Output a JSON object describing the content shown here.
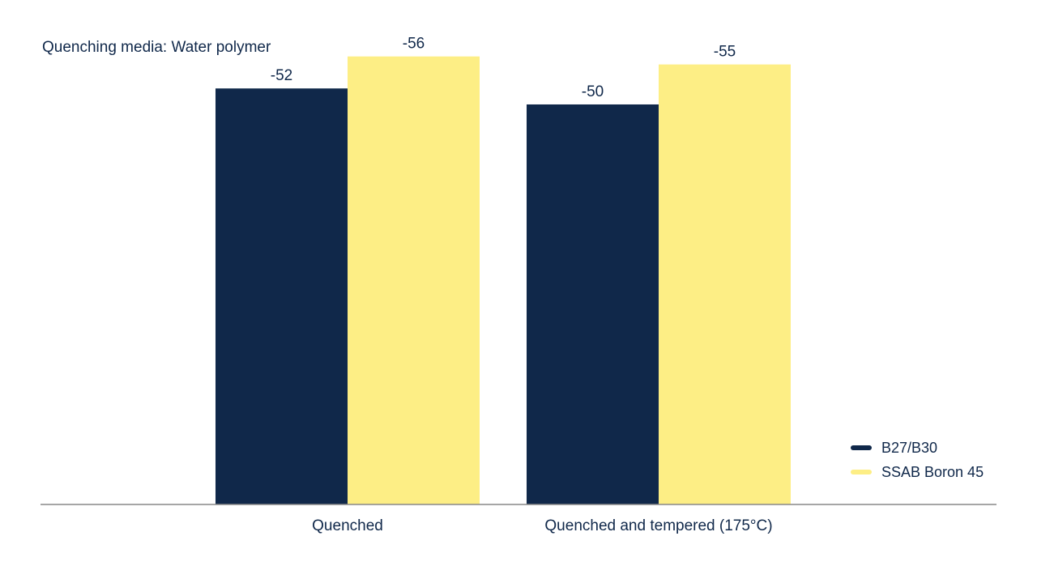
{
  "chart_data": {
    "type": "bar",
    "title": "Quenching media: Water polymer",
    "categories": [
      "Quenched",
      "Quenched and tempered (175°C)"
    ],
    "series": [
      {
        "name": "B27/B30",
        "values": [
          -52,
          -50
        ],
        "color": "#10284a"
      },
      {
        "name": "SSAB Boron 45",
        "values": [
          -56,
          -55
        ],
        "color": "#fdee85"
      }
    ],
    "value_labels": [
      [
        "-52",
        "-50"
      ],
      [
        "-56",
        "-55"
      ]
    ],
    "xlabel": "",
    "ylabel": "",
    "ylim": [
      0,
      -58.5
    ],
    "bar_direction": "upward (magnitude)",
    "grid": false,
    "legend": "bottom-right",
    "axis_color": "#888888",
    "text_color": "#10284a"
  }
}
